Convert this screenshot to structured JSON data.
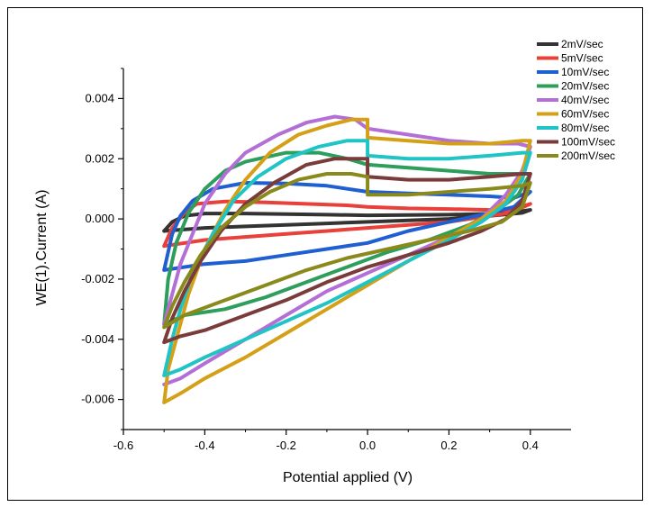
{
  "chart_data": {
    "type": "line",
    "xlabel": "Potential applied (V)",
    "ylabel": "WE(1).Current (A)",
    "xlim": [
      -0.6,
      0.5
    ],
    "ylim": [
      -0.007,
      0.005
    ],
    "x_ticks": [
      -0.6,
      -0.4,
      -0.2,
      0.0,
      0.2,
      0.4
    ],
    "x_tick_labels": [
      "-0.6",
      "-0.4",
      "-0.2",
      "0.0",
      "0.2",
      "0.4"
    ],
    "y_ticks": [
      -0.006,
      -0.004,
      -0.002,
      0.0,
      0.002,
      0.004
    ],
    "y_tick_labels": [
      "-0.006",
      "-0.004",
      "-0.002",
      "0.000",
      "0.002",
      "0.004"
    ],
    "legend_position": "top-right",
    "grid": false,
    "series": [
      {
        "name": "2mV/sec",
        "color": "#333333",
        "points": [
          [
            -0.5,
            -0.0004
          ],
          [
            -0.48,
            -0.0001
          ],
          [
            -0.45,
            0.0001
          ],
          [
            -0.4,
            0.00018
          ],
          [
            -0.3,
            0.00018
          ],
          [
            -0.2,
            0.00016
          ],
          [
            -0.1,
            0.00014
          ],
          [
            0.0,
            0.00012
          ],
          [
            0.1,
            0.00013
          ],
          [
            0.2,
            0.00014
          ],
          [
            0.3,
            0.00017
          ],
          [
            0.35,
            0.0002
          ],
          [
            0.4,
            0.0003
          ],
          [
            0.38,
            0.0002
          ],
          [
            0.3,
            0.0001
          ],
          [
            0.2,
            0.0
          ],
          [
            0.1,
            -5e-05
          ],
          [
            0.0,
            -0.0001
          ],
          [
            -0.1,
            -0.00015
          ],
          [
            -0.2,
            -0.0002
          ],
          [
            -0.3,
            -0.00025
          ],
          [
            -0.4,
            -0.0003
          ],
          [
            -0.5,
            -0.0004
          ]
        ]
      },
      {
        "name": "5mV/sec",
        "color": "#e8403a",
        "points": [
          [
            -0.5,
            -0.0009
          ],
          [
            -0.48,
            -0.0003
          ],
          [
            -0.45,
            0.0002
          ],
          [
            -0.42,
            0.0005
          ],
          [
            -0.35,
            0.00058
          ],
          [
            -0.25,
            0.00055
          ],
          [
            -0.15,
            0.0005
          ],
          [
            -0.05,
            0.00045
          ],
          [
            0.0,
            0.0004
          ],
          [
            0.1,
            0.00035
          ],
          [
            0.2,
            0.00033
          ],
          [
            0.3,
            0.0003
          ],
          [
            0.35,
            0.0003
          ],
          [
            0.4,
            0.0005
          ],
          [
            0.35,
            0.0002
          ],
          [
            0.3,
            0.0001
          ],
          [
            0.2,
            -0.0001
          ],
          [
            0.1,
            -0.0002
          ],
          [
            0.0,
            -0.0003
          ],
          [
            -0.1,
            -0.0004
          ],
          [
            -0.2,
            -0.0005
          ],
          [
            -0.3,
            -0.0006
          ],
          [
            -0.4,
            -0.0007
          ],
          [
            -0.5,
            -0.0009
          ]
        ]
      },
      {
        "name": "10mV/sec",
        "color": "#1f5fd1",
        "points": [
          [
            -0.5,
            -0.0017
          ],
          [
            -0.48,
            -0.0005
          ],
          [
            -0.46,
            0.0001
          ],
          [
            -0.43,
            0.0006
          ],
          [
            -0.38,
            0.001
          ],
          [
            -0.3,
            0.0012
          ],
          [
            -0.2,
            0.00118
          ],
          [
            -0.1,
            0.0011
          ],
          [
            0.0,
            0.0009
          ],
          [
            0.1,
            0.00085
          ],
          [
            0.2,
            0.0008
          ],
          [
            0.3,
            0.00075
          ],
          [
            0.36,
            0.0007
          ],
          [
            0.4,
            0.0009
          ],
          [
            0.36,
            0.0004
          ],
          [
            0.3,
            0.0002
          ],
          [
            0.2,
            -0.0001
          ],
          [
            0.1,
            -0.0004
          ],
          [
            0.0,
            -0.0008
          ],
          [
            -0.1,
            -0.001
          ],
          [
            -0.2,
            -0.0012
          ],
          [
            -0.3,
            -0.0014
          ],
          [
            -0.4,
            -0.0015
          ],
          [
            -0.5,
            -0.0017
          ]
        ]
      },
      {
        "name": "20mV/sec",
        "color": "#2e9e5c",
        "points": [
          [
            -0.5,
            -0.0035
          ],
          [
            -0.49,
            -0.002
          ],
          [
            -0.47,
            -0.0008
          ],
          [
            -0.44,
            0.0002
          ],
          [
            -0.4,
            0.001
          ],
          [
            -0.35,
            0.0016
          ],
          [
            -0.3,
            0.0019
          ],
          [
            -0.2,
            0.0022
          ],
          [
            -0.12,
            0.0022
          ],
          [
            -0.05,
            0.002
          ],
          [
            0.0,
            0.0018
          ],
          [
            0.1,
            0.0017
          ],
          [
            0.2,
            0.0016
          ],
          [
            0.3,
            0.0015
          ],
          [
            0.37,
            0.0015
          ],
          [
            0.4,
            0.0015
          ],
          [
            0.37,
            0.0008
          ],
          [
            0.32,
            0.0003
          ],
          [
            0.25,
            -0.0002
          ],
          [
            0.15,
            -0.0007
          ],
          [
            0.05,
            -0.0011
          ],
          [
            -0.05,
            -0.0016
          ],
          [
            -0.15,
            -0.0021
          ],
          [
            -0.25,
            -0.0026
          ],
          [
            -0.35,
            -0.003
          ],
          [
            -0.45,
            -0.0032
          ],
          [
            -0.5,
            -0.0035
          ]
        ]
      },
      {
        "name": "40mV/sec",
        "color": "#b36fd6",
        "points": [
          [
            -0.5,
            -0.0035
          ],
          [
            -0.48,
            -0.0025
          ],
          [
            -0.46,
            -0.0015
          ],
          [
            -0.43,
            -0.0005
          ],
          [
            -0.4,
            0.0005
          ],
          [
            -0.35,
            0.0015
          ],
          [
            -0.3,
            0.0022
          ],
          [
            -0.22,
            0.0028
          ],
          [
            -0.15,
            0.0032
          ],
          [
            -0.08,
            0.0034
          ],
          [
            -0.03,
            0.0033
          ],
          [
            0.0,
            0.003
          ],
          [
            0.1,
            0.0028
          ],
          [
            0.2,
            0.0026
          ],
          [
            0.3,
            0.0025
          ],
          [
            0.37,
            0.0025
          ],
          [
            0.4,
            0.0024
          ],
          [
            0.38,
            0.0016
          ],
          [
            0.34,
            0.0008
          ],
          [
            0.28,
            0.0
          ],
          [
            0.2,
            -0.0006
          ],
          [
            0.1,
            -0.0012
          ],
          [
            0.0,
            -0.0018
          ],
          [
            -0.1,
            -0.0024
          ],
          [
            -0.2,
            -0.0032
          ],
          [
            -0.3,
            -0.004
          ],
          [
            -0.4,
            -0.0048
          ],
          [
            -0.46,
            -0.0053
          ],
          [
            -0.5,
            -0.0055
          ]
        ]
      },
      {
        "name": "60mV/sec",
        "color": "#d4a017",
        "points": [
          [
            -0.5,
            -0.0061
          ],
          [
            -0.49,
            -0.005
          ],
          [
            -0.47,
            -0.004
          ],
          [
            -0.44,
            -0.0025
          ],
          [
            -0.4,
            -0.001
          ],
          [
            -0.35,
            0.0003
          ],
          [
            -0.3,
            0.0013
          ],
          [
            -0.24,
            0.0022
          ],
          [
            -0.17,
            0.0028
          ],
          [
            -0.1,
            0.0031
          ],
          [
            -0.04,
            0.0033
          ],
          [
            0.0,
            0.0033
          ],
          [
            0.0,
            0.0027
          ],
          [
            0.1,
            0.0026
          ],
          [
            0.2,
            0.0025
          ],
          [
            0.3,
            0.0025
          ],
          [
            0.38,
            0.0026
          ],
          [
            0.4,
            0.0026
          ],
          [
            0.38,
            0.0015
          ],
          [
            0.34,
            0.0006
          ],
          [
            0.28,
            0.0
          ],
          [
            0.2,
            -0.0006
          ],
          [
            0.1,
            -0.0014
          ],
          [
            0.0,
            -0.0022
          ],
          [
            -0.1,
            -0.003
          ],
          [
            -0.2,
            -0.0038
          ],
          [
            -0.3,
            -0.0046
          ],
          [
            -0.4,
            -0.0053
          ],
          [
            -0.46,
            -0.0058
          ],
          [
            -0.5,
            -0.0061
          ]
        ]
      },
      {
        "name": "80mV/sec",
        "color": "#20c4c4",
        "points": [
          [
            -0.5,
            -0.0052
          ],
          [
            -0.48,
            -0.004
          ],
          [
            -0.46,
            -0.003
          ],
          [
            -0.43,
            -0.0018
          ],
          [
            -0.38,
            -0.0005
          ],
          [
            -0.33,
            0.0006
          ],
          [
            -0.27,
            0.0014
          ],
          [
            -0.2,
            0.002
          ],
          [
            -0.12,
            0.0024
          ],
          [
            -0.05,
            0.0026
          ],
          [
            0.0,
            0.0026
          ],
          [
            0.0,
            0.0021
          ],
          [
            0.1,
            0.002
          ],
          [
            0.2,
            0.002
          ],
          [
            0.3,
            0.0021
          ],
          [
            0.38,
            0.0022
          ],
          [
            0.4,
            0.0022
          ],
          [
            0.38,
            0.0013
          ],
          [
            0.34,
            0.0005
          ],
          [
            0.28,
            -0.0001
          ],
          [
            0.2,
            -0.0007
          ],
          [
            0.1,
            -0.0014
          ],
          [
            0.0,
            -0.0021
          ],
          [
            -0.1,
            -0.0028
          ],
          [
            -0.2,
            -0.0034
          ],
          [
            -0.3,
            -0.004
          ],
          [
            -0.4,
            -0.0046
          ],
          [
            -0.46,
            -0.005
          ],
          [
            -0.5,
            -0.0052
          ]
        ]
      },
      {
        "name": "100mV/sec",
        "color": "#7a3b3b",
        "points": [
          [
            -0.5,
            -0.0041
          ],
          [
            -0.48,
            -0.0033
          ],
          [
            -0.45,
            -0.0024
          ],
          [
            -0.41,
            -0.0014
          ],
          [
            -0.36,
            -0.0004
          ],
          [
            -0.3,
            0.0005
          ],
          [
            -0.23,
            0.0012
          ],
          [
            -0.15,
            0.0018
          ],
          [
            -0.08,
            0.002
          ],
          [
            0.0,
            0.002
          ],
          [
            0.0,
            0.0014
          ],
          [
            0.1,
            0.0013
          ],
          [
            0.2,
            0.0013
          ],
          [
            0.3,
            0.0014
          ],
          [
            0.38,
            0.0015
          ],
          [
            0.4,
            0.0015
          ],
          [
            0.38,
            0.0006
          ],
          [
            0.34,
            0.0
          ],
          [
            0.28,
            -0.0004
          ],
          [
            0.2,
            -0.0008
          ],
          [
            0.1,
            -0.0012
          ],
          [
            0.0,
            -0.0016
          ],
          [
            -0.1,
            -0.0021
          ],
          [
            -0.2,
            -0.0027
          ],
          [
            -0.3,
            -0.0032
          ],
          [
            -0.4,
            -0.0037
          ],
          [
            -0.46,
            -0.0039
          ],
          [
            -0.5,
            -0.0041
          ]
        ]
      },
      {
        "name": "200mV/sec",
        "color": "#8a8a1c",
        "points": [
          [
            -0.5,
            -0.0036
          ],
          [
            -0.48,
            -0.0029
          ],
          [
            -0.45,
            -0.0021
          ],
          [
            -0.41,
            -0.0012
          ],
          [
            -0.36,
            -0.0003
          ],
          [
            -0.3,
            0.0004
          ],
          [
            -0.24,
            0.0009
          ],
          [
            -0.17,
            0.0013
          ],
          [
            -0.1,
            0.0015
          ],
          [
            -0.04,
            0.0015
          ],
          [
            0.0,
            0.0014
          ],
          [
            0.0,
            0.0008
          ],
          [
            0.1,
            0.0008
          ],
          [
            0.2,
            0.0009
          ],
          [
            0.3,
            0.001
          ],
          [
            0.38,
            0.0011
          ],
          [
            0.4,
            0.0012
          ],
          [
            0.38,
            0.0004
          ],
          [
            0.33,
            -0.0001
          ],
          [
            0.25,
            -0.0004
          ],
          [
            0.15,
            -0.0007
          ],
          [
            0.05,
            -0.001
          ],
          [
            -0.05,
            -0.0013
          ],
          [
            -0.15,
            -0.0017
          ],
          [
            -0.25,
            -0.0022
          ],
          [
            -0.35,
            -0.0027
          ],
          [
            -0.45,
            -0.0032
          ],
          [
            -0.5,
            -0.0036
          ]
        ]
      }
    ]
  }
}
